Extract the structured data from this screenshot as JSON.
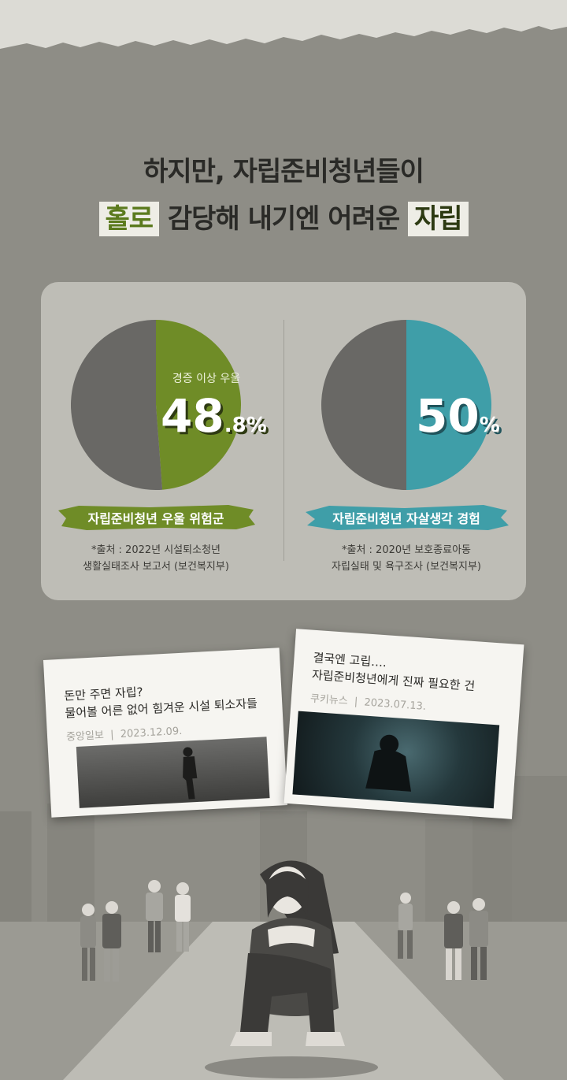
{
  "headline": {
    "line1": "하지만, 자립준비청년들이",
    "line2_hl1": "홀로",
    "line2_mid": " 감당해 내기엔 어려운 ",
    "line2_hl2": "자립"
  },
  "colors": {
    "background": "#8e8d86",
    "panel": "#bebdb6",
    "pie_gray": "#696865",
    "pie_green": "#6f8c27",
    "pie_teal": "#3f9ea8"
  },
  "chart_data": [
    {
      "type": "pie",
      "slices": [
        {
          "name": "경증 이상 우울",
          "value": 48.8,
          "color": "#6f8c27"
        },
        {
          "name": "",
          "value": 51.2,
          "color": "#696865"
        }
      ],
      "label_small": "경증 이상 우울",
      "big_value_int": "48",
      "big_value_dec": ".8",
      "big_value_unit": "%",
      "caption": "자립준비청년 우울 위험군",
      "source_line1": "*출처 : 2022년 시설퇴소청년",
      "source_line2": "생활실태조사 보고서 (보건복지부)"
    },
    {
      "type": "pie",
      "slices": [
        {
          "name": "자립준비청년 자살생각 경험",
          "value": 50,
          "color": "#3f9ea8"
        },
        {
          "name": "",
          "value": 50,
          "color": "#696865"
        }
      ],
      "big_value_int": "50",
      "big_value_unit": "%",
      "caption": "자립준비청년 자살생각 경험",
      "source_line1": "*출처 : 2020년 보호종료아동",
      "source_line2": "자립실태 및 욕구조사 (보건복지부)"
    }
  ],
  "articles": [
    {
      "title_line1": "돈만 주면 자립?",
      "title_line2": "물어볼 어른 없어 힘겨운 시설 퇴소자들",
      "source": "중앙일보",
      "date": "2023.12.09."
    },
    {
      "title_line1": "결국엔 고립….",
      "title_line2": "자립준비청년에게 진짜 필요한 건",
      "source": "쿠키뉴스",
      "date": "2023.07.13."
    }
  ]
}
